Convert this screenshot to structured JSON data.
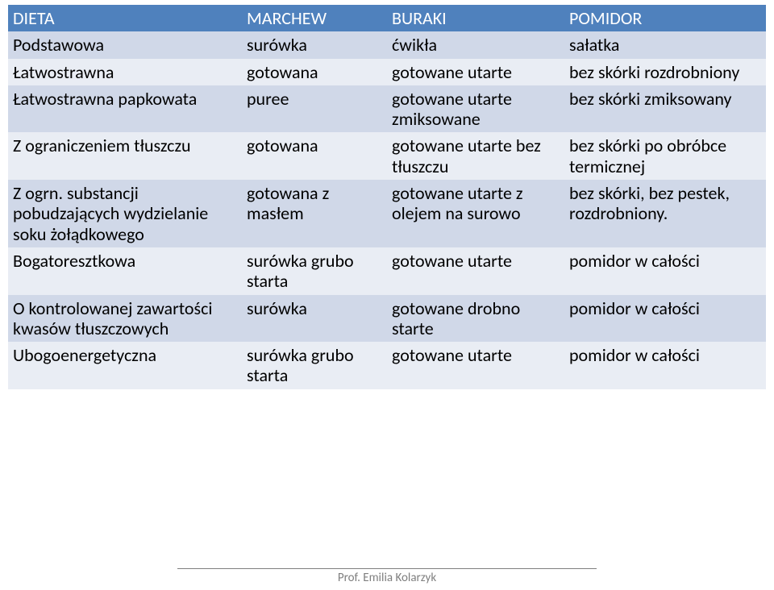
{
  "colors": {
    "header_bg": "#4f81bd",
    "row_light_bg": "#d0d8e8",
    "row_dark_bg": "#e9edf4",
    "header_text": "#ffffff",
    "body_text": "#000000",
    "footer_text": "#7f7f7f"
  },
  "table": {
    "columns": [
      "DIETA",
      "MARCHEW",
      "BURAKI",
      "POMIDOR"
    ],
    "rows": [
      [
        "Podstawowa",
        "surówka",
        "ćwikła",
        "sałatka"
      ],
      [
        "Łatwostrawna",
        "gotowana",
        "gotowane utarte",
        "bez skórki rozdrobniony"
      ],
      [
        "Łatwostrawna papkowata",
        "puree",
        "gotowane utarte zmiksowane",
        "bez skórki zmiksowany"
      ],
      [
        "Z ograniczeniem tłuszczu",
        "gotowana",
        "gotowane utarte bez tłuszczu",
        "bez skórki po obróbce termicznej"
      ],
      [
        "Z ogrn. substancji pobudzających wydzielanie soku żołądkowego",
        "gotowana z masłem",
        "gotowane utarte z olejem na surowo",
        "bez skórki, bez pestek, rozdrobniony."
      ],
      [
        "Bogatoresztkowa",
        "surówka grubo starta",
        "gotowane utarte",
        "pomidor w całości"
      ],
      [
        "O kontrolowanej zawartości kwasów tłuszczowych",
        "surówka",
        "gotowane drobno starte",
        "pomidor w całości"
      ],
      [
        "Ubogoenergetyczna",
        "surówka grubo starta",
        "gotowane utarte",
        "pomidor w całości"
      ]
    ]
  },
  "footer": "Prof. Emilia Kolarzyk"
}
